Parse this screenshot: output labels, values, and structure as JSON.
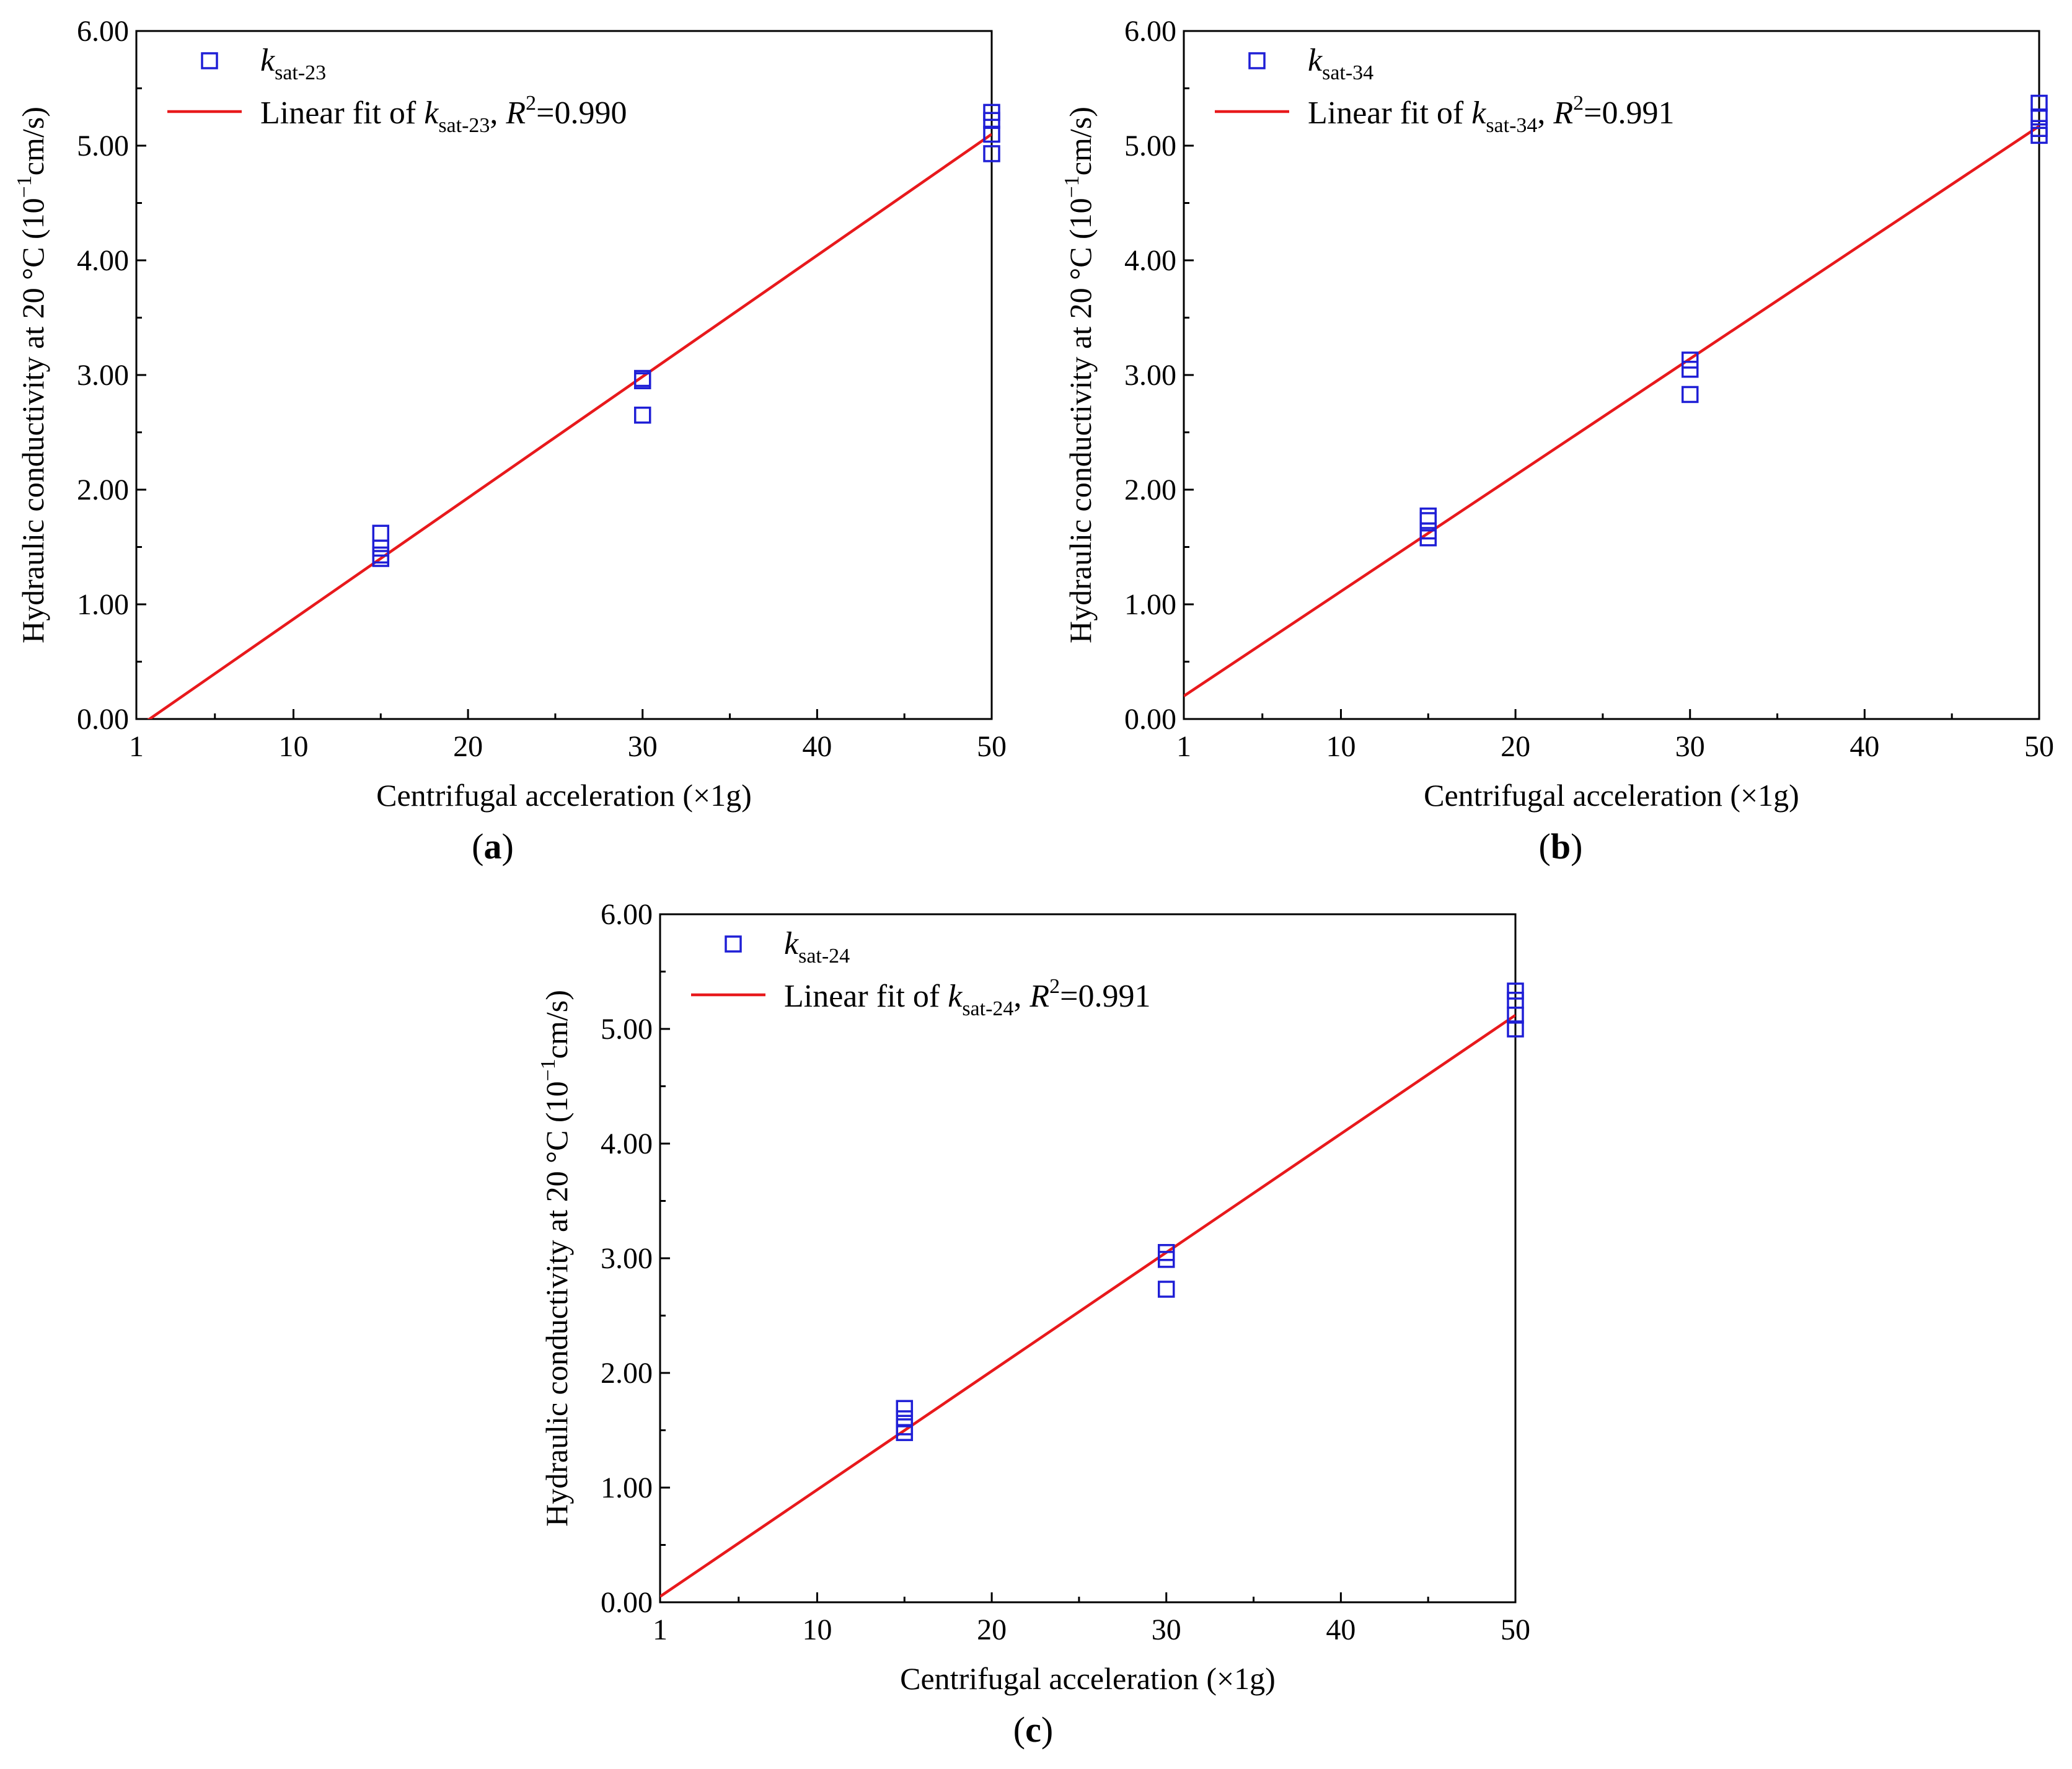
{
  "figure": {
    "panels": [
      "a",
      "b",
      "c"
    ]
  },
  "chart_data": [
    {
      "panel_label": "a",
      "type": "scatter",
      "xlabel": "Centrifugal acceleration (×1g)",
      "ylabel": "Hydraulic conductivity at 20 °C (10⁻¹cm/s)",
      "ylabel_parts": {
        "main": "Hydraulic conductivity at 20 °C (10",
        "sup": "−1",
        "tail": "cm/s)"
      },
      "xlim": [
        1,
        50
      ],
      "ylim": [
        0,
        6
      ],
      "x_ticks": [
        1,
        10,
        20,
        30,
        40,
        50
      ],
      "y_ticks": [
        "0.00",
        "1.00",
        "2.00",
        "3.00",
        "4.00",
        "5.00",
        "6.00"
      ],
      "grid": false,
      "legend_position": "top-left",
      "series": [
        {
          "name": "ksat-23",
          "name_parts": {
            "k": "k",
            "sub": "sat-23"
          },
          "marker": "square-open",
          "color": "#1f1fd6",
          "x": [
            15,
            15,
            15,
            15,
            30,
            30,
            30,
            50,
            50,
            50,
            50
          ],
          "y": [
            1.62,
            1.49,
            1.43,
            1.4,
            2.97,
            2.95,
            2.65,
            5.29,
            5.22,
            5.1,
            4.93
          ]
        },
        {
          "name": "Linear fit of ksat-23, R2=0.990",
          "name_parts": {
            "prefix": "Linear fit of ",
            "k": "k",
            "sub": "sat-23",
            "comma": ", ",
            "R": "R",
            "sup": "2",
            "rest": "=0.990"
          },
          "type": "line",
          "color": "#e8191c",
          "x": [
            1,
            50
          ],
          "y": [
            -0.08,
            5.1
          ]
        }
      ]
    },
    {
      "panel_label": "b",
      "type": "scatter",
      "xlabel": "Centrifugal acceleration (×1g)",
      "ylabel": "Hydraulic conductivity at 20 °C (10⁻¹cm/s)",
      "ylabel_parts": {
        "main": "Hydraulic conductivity at 20 °C (10",
        "sup": "−1",
        "tail": "cm/s)"
      },
      "xlim": [
        1,
        50
      ],
      "ylim": [
        0,
        6
      ],
      "x_ticks": [
        1,
        10,
        20,
        30,
        40,
        50
      ],
      "y_ticks": [
        "0.00",
        "1.00",
        "2.00",
        "3.00",
        "4.00",
        "5.00",
        "6.00"
      ],
      "grid": false,
      "legend_position": "top-left",
      "series": [
        {
          "name": "ksat-34",
          "name_parts": {
            "k": "k",
            "sub": "sat-34"
          },
          "marker": "square-open",
          "color": "#1f1fd6",
          "x": [
            15,
            15,
            15,
            15,
            30,
            30,
            30,
            50,
            50,
            50,
            50
          ],
          "y": [
            1.77,
            1.73,
            1.64,
            1.58,
            3.13,
            3.05,
            2.83,
            5.37,
            5.25,
            5.15,
            5.09
          ]
        },
        {
          "name": "Linear fit of ksat-34, R2=0.991",
          "name_parts": {
            "prefix": "Linear fit of ",
            "k": "k",
            "sub": "sat-34",
            "comma": ", ",
            "R": "R",
            "sup": "2",
            "rest": "=0.991"
          },
          "type": "line",
          "color": "#e8191c",
          "x": [
            1,
            50
          ],
          "y": [
            0.2,
            5.17
          ]
        }
      ]
    },
    {
      "panel_label": "c",
      "type": "scatter",
      "xlabel": "Centrifugal acceleration (×1g)",
      "ylabel": "Hydraulic conductivity at 20 °C (10⁻¹cm/s)",
      "ylabel_parts": {
        "main": "Hydraulic conductivity at 20 °C (10",
        "sup": "−1",
        "tail": "cm/s)"
      },
      "xlim": [
        1,
        50
      ],
      "ylim": [
        0,
        6
      ],
      "x_ticks": [
        1,
        10,
        20,
        30,
        40,
        50
      ],
      "y_ticks": [
        "0.00",
        "1.00",
        "2.00",
        "3.00",
        "4.00",
        "5.00",
        "6.00"
      ],
      "grid": false,
      "legend_position": "top-left",
      "series": [
        {
          "name": "ksat-24",
          "name_parts": {
            "k": "k",
            "sub": "sat-24"
          },
          "marker": "square-open",
          "color": "#1f1fd6",
          "x": [
            15,
            15,
            15,
            15,
            30,
            30,
            30,
            50,
            50,
            50,
            50
          ],
          "y": [
            1.69,
            1.6,
            1.53,
            1.48,
            3.05,
            2.99,
            2.73,
            5.33,
            5.25,
            5.12,
            5.0
          ]
        },
        {
          "name": "Linear fit of ksat-24, R2=0.991",
          "name_parts": {
            "prefix": "Linear fit of ",
            "k": "k",
            "sub": "sat-24",
            "comma": ", ",
            "R": "R",
            "sup": "2",
            "rest": "=0.991"
          },
          "type": "line",
          "color": "#e8191c",
          "x": [
            1,
            50
          ],
          "y": [
            0.05,
            5.12
          ]
        }
      ]
    }
  ]
}
